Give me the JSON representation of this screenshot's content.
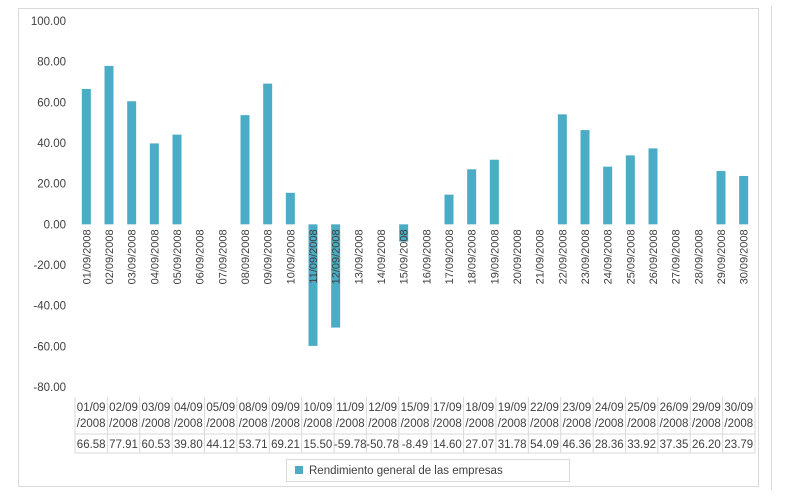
{
  "chart_data": {
    "type": "bar",
    "title": "",
    "xlabel": "",
    "ylabel": "",
    "ylim": [
      -80,
      100
    ],
    "y_ticks": [
      "100.00",
      "80.00",
      "60.00",
      "40.00",
      "20.00",
      "0.00",
      "-20.00",
      "-40.00",
      "-60.00",
      "-80.00"
    ],
    "grid": false,
    "legend_position": "bottom",
    "bar_color": "#4bacc6",
    "categories": [
      "01/09/2008",
      "02/09/2008",
      "03/09/2008",
      "04/09/2008",
      "05/09/2008",
      "06/09/2008",
      "07/09/2008",
      "08/09/2008",
      "09/09/2008",
      "10/09/2008",
      "11/09/2008",
      "12/09/2008",
      "13/09/2008",
      "14/09/2008",
      "15/09/2008",
      "16/09/2008",
      "17/09/2008",
      "18/09/2008",
      "19/09/2008",
      "20/09/2008",
      "21/09/2008",
      "22/09/2008",
      "23/09/2008",
      "24/09/2008",
      "25/09/2008",
      "26/09/2008",
      "27/09/2008",
      "28/09/2008",
      "29/09/2008",
      "30/09/2008"
    ],
    "values": [
      66.58,
      77.91,
      60.53,
      39.8,
      44.12,
      null,
      null,
      53.71,
      69.21,
      15.5,
      -59.78,
      -50.78,
      null,
      null,
      -8.49,
      null,
      14.6,
      27.07,
      31.78,
      null,
      null,
      54.09,
      46.36,
      28.36,
      33.92,
      37.35,
      null,
      null,
      26.2,
      23.79
    ],
    "table_header_rows": [
      [
        "01/09",
        "02/09",
        "03/09",
        "04/09",
        "05/09",
        "08/09",
        "09/09",
        "10/09",
        "11/09",
        "12/09",
        "15/09",
        "17/09",
        "18/09",
        "19/09",
        "22/09",
        "23/09",
        "24/09",
        "25/09",
        "26/09",
        "29/09",
        "30/09"
      ],
      [
        "/2008",
        "/2008",
        "/2008",
        "/2008",
        "/2008",
        "/2008",
        "/2008",
        "/2008",
        "/2008",
        "/2008",
        "/2008",
        "/2008",
        "/2008",
        "/2008",
        "/2008",
        "/2008",
        "/2008",
        "/2008",
        "/2008",
        "/2008",
        "/2008"
      ]
    ],
    "table_values": [
      "66.58",
      "77.91",
      "60.53",
      "39.80",
      "44.12",
      "53.71",
      "69.21",
      "15.50",
      "-59.78",
      "-50.78",
      "-8.49",
      "14.60",
      "27.07",
      "31.78",
      "54.09",
      "46.36",
      "28.36",
      "33.92",
      "37.35",
      "26.20",
      "23.79"
    ],
    "series": [
      {
        "name": "Rendimiento general de las empresas"
      }
    ]
  }
}
